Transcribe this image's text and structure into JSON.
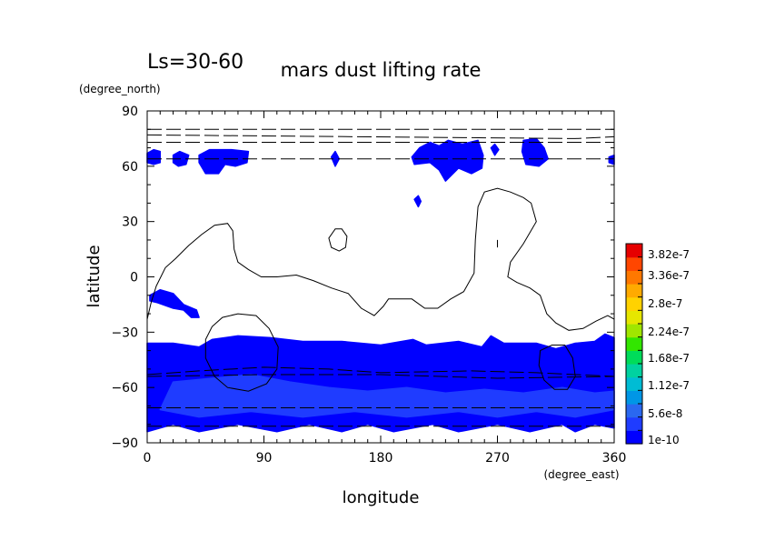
{
  "chart_data": {
    "type": "heatmap",
    "title": "mars dust lifting rate",
    "subtitle": "Ls=30-60",
    "xlabel": "longitude",
    "ylabel": "latitude",
    "x_units": "(degree_east)",
    "y_units": "(degree_north)",
    "xlim": [
      0,
      360
    ],
    "ylim": [
      -90,
      90
    ],
    "x_ticks": [
      "0",
      "90",
      "180",
      "270",
      "360"
    ],
    "y_ticks": [
      "90",
      "60",
      "30",
      "0",
      "−30",
      "−60",
      "−90"
    ],
    "colorbar": {
      "labels": [
        "3.82e-7",
        "3.36e-7",
        "2.8e-7",
        "2.24e-7",
        "1.68e-7",
        "1.12e-7",
        "5.6e-8",
        "1e-10"
      ],
      "levels": [
        1e-10,
        2.8e-08,
        5.6e-08,
        8.4e-08,
        1.12e-07,
        1.4e-07,
        1.68e-07,
        1.96e-07,
        2.24e-07,
        2.52e-07,
        2.8e-07,
        3.08e-07,
        3.36e-07,
        3.64e-07,
        3.82e-07,
        4.1e-07
      ],
      "colors": [
        "#0000ff",
        "#1f3cff",
        "#2a68f0",
        "#0096e6",
        "#00bcd4",
        "#00d2a0",
        "#00dc5a",
        "#32e600",
        "#a0e600",
        "#e6e600",
        "#ffd200",
        "#ffaa00",
        "#ff7800",
        "#ff4600",
        "#e60000"
      ]
    },
    "dust_regions": [
      {
        "name": "south-band",
        "color": "#0000ff",
        "polygon": [
          [
            0,
            -36
          ],
          [
            20,
            -36
          ],
          [
            40,
            -38
          ],
          [
            50,
            -34
          ],
          [
            70,
            -32
          ],
          [
            95,
            -33
          ],
          [
            120,
            -35
          ],
          [
            150,
            -35
          ],
          [
            180,
            -37
          ],
          [
            205,
            -34
          ],
          [
            215,
            -37
          ],
          [
            240,
            -35
          ],
          [
            258,
            -38
          ],
          [
            265,
            -32
          ],
          [
            275,
            -36
          ],
          [
            300,
            -36
          ],
          [
            315,
            -39
          ],
          [
            330,
            -36
          ],
          [
            345,
            -35
          ],
          [
            353,
            -31
          ],
          [
            360,
            -33
          ],
          [
            360,
            -82
          ],
          [
            345,
            -80
          ],
          [
            330,
            -84
          ],
          [
            320,
            -80
          ],
          [
            295,
            -84
          ],
          [
            270,
            -80
          ],
          [
            240,
            -84
          ],
          [
            220,
            -80
          ],
          [
            190,
            -84
          ],
          [
            170,
            -80
          ],
          [
            150,
            -84
          ],
          [
            125,
            -80
          ],
          [
            100,
            -84
          ],
          [
            70,
            -80
          ],
          [
            40,
            -84
          ],
          [
            20,
            -80
          ],
          [
            0,
            -84
          ]
        ]
      },
      {
        "name": "south-core",
        "color": "#1f3cff",
        "polygon": [
          [
            20,
            -57
          ],
          [
            50,
            -55
          ],
          [
            80,
            -53
          ],
          [
            110,
            -57
          ],
          [
            140,
            -60
          ],
          [
            170,
            -62
          ],
          [
            200,
            -60
          ],
          [
            230,
            -63
          ],
          [
            260,
            -61
          ],
          [
            290,
            -63
          ],
          [
            320,
            -60
          ],
          [
            345,
            -63
          ],
          [
            360,
            -62
          ],
          [
            360,
            -72
          ],
          [
            330,
            -76
          ],
          [
            300,
            -73
          ],
          [
            270,
            -76
          ],
          [
            240,
            -73
          ],
          [
            200,
            -76
          ],
          [
            160,
            -73
          ],
          [
            120,
            -76
          ],
          [
            80,
            -73
          ],
          [
            40,
            -76
          ],
          [
            10,
            -72
          ]
        ]
      },
      {
        "name": "patch-1",
        "color": "#0000ff",
        "polygon": [
          [
            0,
            67
          ],
          [
            5,
            69
          ],
          [
            10,
            68
          ],
          [
            10,
            62
          ],
          [
            5,
            61
          ],
          [
            0,
            62
          ]
        ]
      },
      {
        "name": "patch-2",
        "color": "#0000ff",
        "polygon": [
          [
            20,
            66
          ],
          [
            25,
            68
          ],
          [
            32,
            66
          ],
          [
            30,
            61
          ],
          [
            24,
            60
          ],
          [
            20,
            62
          ]
        ]
      },
      {
        "name": "patch-3",
        "color": "#0000ff",
        "polygon": [
          [
            40,
            66
          ],
          [
            48,
            69
          ],
          [
            65,
            69
          ],
          [
            78,
            68
          ],
          [
            77,
            62
          ],
          [
            68,
            60
          ],
          [
            60,
            61
          ],
          [
            55,
            56
          ],
          [
            45,
            56
          ],
          [
            40,
            62
          ]
        ]
      },
      {
        "name": "patch-4",
        "color": "#0000ff",
        "polygon": [
          [
            142,
            65
          ],
          [
            145,
            68
          ],
          [
            148,
            64
          ],
          [
            145,
            60
          ]
        ]
      },
      {
        "name": "patch-5",
        "color": "#0000ff",
        "polygon": [
          [
            206,
            42
          ],
          [
            209,
            44
          ],
          [
            211,
            41
          ],
          [
            209,
            38
          ]
        ]
      },
      {
        "name": "patch-6",
        "color": "#0000ff",
        "polygon": [
          [
            204,
            65
          ],
          [
            210,
            70
          ],
          [
            218,
            73
          ],
          [
            225,
            71
          ],
          [
            232,
            74
          ],
          [
            243,
            72
          ],
          [
            255,
            74
          ],
          [
            259,
            66
          ],
          [
            258,
            59
          ],
          [
            250,
            56
          ],
          [
            240,
            59
          ],
          [
            230,
            52
          ],
          [
            225,
            58
          ],
          [
            218,
            62
          ],
          [
            206,
            61
          ]
        ]
      },
      {
        "name": "patch-7",
        "color": "#0000ff",
        "polygon": [
          [
            265,
            70
          ],
          [
            268,
            72
          ],
          [
            271,
            69
          ],
          [
            268,
            66
          ]
        ]
      },
      {
        "name": "patch-8",
        "color": "#0000ff",
        "polygon": [
          [
            290,
            74
          ],
          [
            300,
            75
          ],
          [
            306,
            70
          ],
          [
            309,
            64
          ],
          [
            302,
            60
          ],
          [
            292,
            61
          ],
          [
            289,
            68
          ]
        ]
      },
      {
        "name": "patch-9",
        "color": "#0000ff",
        "polygon": [
          [
            356,
            65
          ],
          [
            360,
            66
          ],
          [
            360,
            61
          ],
          [
            356,
            62
          ]
        ]
      },
      {
        "name": "patch-10",
        "color": "#0000ff",
        "polygon": [
          [
            2,
            -10
          ],
          [
            10,
            -7
          ],
          [
            20,
            -9
          ],
          [
            28,
            -15
          ],
          [
            38,
            -18
          ],
          [
            40,
            -22
          ],
          [
            34,
            -22
          ],
          [
            28,
            -18
          ],
          [
            20,
            -17
          ],
          [
            8,
            -14
          ],
          [
            2,
            -13
          ]
        ]
      }
    ],
    "contour_lines": [
      {
        "name": "terrain-main",
        "style": "solid",
        "points": [
          [
            0,
            -23
          ],
          [
            3,
            -14
          ],
          [
            7,
            -5
          ],
          [
            14,
            5
          ],
          [
            22,
            10
          ],
          [
            32,
            17
          ],
          [
            42,
            23
          ],
          [
            52,
            28
          ],
          [
            62,
            29
          ],
          [
            66,
            25
          ],
          [
            67,
            15
          ],
          [
            70,
            8
          ],
          [
            78,
            4
          ],
          [
            88,
            0
          ],
          [
            100,
            0
          ],
          [
            115,
            1
          ],
          [
            128,
            -2
          ],
          [
            142,
            -6
          ],
          [
            155,
            -9
          ],
          [
            165,
            -17
          ],
          [
            175,
            -21
          ],
          [
            182,
            -16
          ],
          [
            186,
            -12
          ],
          [
            196,
            -12
          ],
          [
            204,
            -12
          ],
          [
            214,
            -17
          ],
          [
            224,
            -17
          ],
          [
            234,
            -12
          ],
          [
            244,
            -8
          ],
          [
            252,
            2
          ],
          [
            253,
            20
          ],
          [
            255,
            38
          ],
          [
            260,
            46
          ],
          [
            270,
            48
          ],
          [
            280,
            46
          ],
          [
            290,
            43
          ],
          [
            296,
            40
          ],
          [
            300,
            30
          ],
          [
            290,
            18
          ],
          [
            280,
            8
          ],
          [
            278,
            0
          ],
          [
            285,
            -3
          ],
          [
            295,
            -6
          ],
          [
            303,
            -10
          ],
          [
            308,
            -20
          ],
          [
            315,
            -25
          ],
          [
            325,
            -29
          ],
          [
            336,
            -28
          ],
          [
            346,
            -24
          ],
          [
            355,
            -21
          ],
          [
            360,
            -23
          ]
        ]
      },
      {
        "name": "terrain-circle-1",
        "style": "solid",
        "closed": true,
        "points": [
          [
            50,
            -27
          ],
          [
            58,
            -22
          ],
          [
            70,
            -20
          ],
          [
            84,
            -21
          ],
          [
            94,
            -28
          ],
          [
            101,
            -38
          ],
          [
            100,
            -50
          ],
          [
            92,
            -58
          ],
          [
            78,
            -62
          ],
          [
            62,
            -60
          ],
          [
            52,
            -54
          ],
          [
            45,
            -44
          ],
          [
            45,
            -34
          ]
        ]
      },
      {
        "name": "terrain-circle-2",
        "style": "solid",
        "closed": true,
        "points": [
          [
            140,
            21
          ],
          [
            145,
            26
          ],
          [
            150,
            26
          ],
          [
            154,
            22
          ],
          [
            153,
            16
          ],
          [
            148,
            14
          ],
          [
            142,
            16
          ]
        ]
      },
      {
        "name": "terrain-circle-3",
        "style": "solid",
        "closed": true,
        "points": [
          [
            303,
            -40
          ],
          [
            312,
            -37
          ],
          [
            322,
            -37
          ],
          [
            328,
            -44
          ],
          [
            330,
            -54
          ],
          [
            324,
            -61
          ],
          [
            314,
            -61
          ],
          [
            306,
            -56
          ],
          [
            302,
            -48
          ]
        ]
      },
      {
        "name": "terrain-tick",
        "style": "solid",
        "points": [
          [
            270,
            16
          ],
          [
            270,
            20
          ]
        ]
      },
      {
        "name": "dash-north-1",
        "style": "dashed",
        "points": [
          [
            0,
            80
          ],
          [
            360,
            80
          ]
        ]
      },
      {
        "name": "dash-north-2",
        "style": "dashed",
        "points": [
          [
            0,
            77
          ],
          [
            330,
            75
          ],
          [
            360,
            76
          ]
        ]
      },
      {
        "name": "dash-north-3",
        "style": "dashed",
        "points": [
          [
            0,
            73
          ],
          [
            360,
            73
          ]
        ]
      },
      {
        "name": "dash-north-4",
        "style": "dashed",
        "points": [
          [
            0,
            64
          ],
          [
            360,
            64
          ]
        ]
      },
      {
        "name": "dash-south-1",
        "style": "dashed",
        "points": [
          [
            0,
            -53
          ],
          [
            40,
            -51
          ],
          [
            90,
            -49
          ],
          [
            140,
            -50
          ],
          [
            180,
            -52
          ],
          [
            250,
            -51
          ],
          [
            300,
            -52
          ],
          [
            360,
            -54
          ]
        ]
      },
      {
        "name": "dash-south-2",
        "style": "dashed",
        "points": [
          [
            0,
            -54
          ],
          [
            90,
            -53
          ],
          [
            180,
            -53
          ],
          [
            270,
            -55
          ],
          [
            360,
            -54
          ]
        ]
      },
      {
        "name": "dash-south-3",
        "style": "dashed",
        "points": [
          [
            0,
            -71
          ],
          [
            360,
            -71
          ]
        ]
      },
      {
        "name": "dash-south-4",
        "style": "dashed",
        "points": [
          [
            0,
            -81
          ],
          [
            360,
            -81
          ]
        ]
      }
    ]
  }
}
